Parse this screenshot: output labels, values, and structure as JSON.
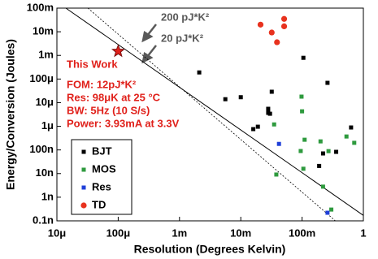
{
  "chart_data": {
    "type": "scatter",
    "x_label": "Resolution (Degrees Kelvin)",
    "y_label": "Energy/Conversion (Joules)",
    "xscale": "log",
    "yscale": "log",
    "xlim": [
      1e-05,
      1
    ],
    "ylim": [
      1e-10,
      0.1
    ],
    "xticks": [
      {
        "value": 1e-05,
        "label": "10μ"
      },
      {
        "value": 0.0001,
        "label": "100μ"
      },
      {
        "value": 0.001,
        "label": "1m"
      },
      {
        "value": 0.01,
        "label": "10m"
      },
      {
        "value": 0.1,
        "label": "100m"
      },
      1
    ],
    "yticks": [
      {
        "value": 1e-10,
        "label": "0.1n"
      },
      {
        "value": 1e-09,
        "label": "1n"
      },
      {
        "value": 1e-08,
        "label": "10n"
      },
      {
        "value": 1e-07,
        "label": "100n"
      },
      {
        "value": 1e-06,
        "label": "1μ"
      },
      {
        "value": 1e-05,
        "label": "10μ"
      },
      {
        "value": 0.0001,
        "label": "100μ"
      },
      {
        "value": 0.001,
        "label": "1m"
      },
      {
        "value": 0.01,
        "label": "10m"
      },
      {
        "value": 0.1,
        "label": "100m"
      }
    ],
    "legend": "lower left",
    "series": [
      {
        "name": "BJT",
        "color": "#000000",
        "marker": "square",
        "x": [
          0.0021,
          0.0056,
          0.01,
          0.016,
          0.019,
          0.028,
          0.028,
          0.032,
          0.03,
          0.105,
          0.26,
          0.22,
          0.36,
          0.19,
          0.63
        ],
        "values": [
          0.00019,
          1.4e-05,
          1.7e-05,
          7.6e-07,
          9.6e-07,
          3.7e-06,
          5.5e-06,
          2.9e-05,
          3.4e-06,
          0.00079,
          6.9e-05,
          7.1e-08,
          8.3e-08,
          2.1e-08,
          8.9e-07
        ]
      },
      {
        "name": "MOS",
        "color": "#2e9a3e",
        "marker": "square",
        "x": [
          0.035,
          0.098,
          0.1,
          0.11,
          0.095,
          0.105,
          0.038,
          0.2,
          0.22,
          0.3,
          0.27,
          0.53,
          0.71
        ],
        "values": [
          1.2e-06,
          1.8e-05,
          4.3e-06,
          2.7e-07,
          9e-08,
          1.6e-08,
          9.1e-09,
          2.3e-07,
          2.8e-09,
          3e-10,
          8.9e-08,
          3.7e-07,
          2e-07
        ]
      },
      {
        "name": "Res",
        "color": "#1f3fd8",
        "marker": "square",
        "x": [
          0.042,
          0.26
        ],
        "values": [
          1.8e-07,
          2.2e-10
        ]
      },
      {
        "name": "TD",
        "color": "#e8321e",
        "marker": "circle",
        "x": [
          0.021,
          0.032,
          0.039,
          0.051,
          0.051
        ],
        "values": [
          0.02,
          0.0093,
          0.0036,
          0.035,
          0.017
        ]
      }
    ],
    "this_work": {
      "label": "This Work",
      "x": 0.0001,
      "y": 0.0015,
      "color": "#e0201a"
    },
    "fom_lines": [
      {
        "name": "200 pJ*K²",
        "style": "solid",
        "x": [
          1.4e-05,
          1
        ],
        "values": [
          0.1,
          1.7e-10
        ]
      },
      {
        "name": "20 pJ*K²",
        "style": "dashed",
        "x": [
          3.2e-05,
          0.35
        ],
        "values": [
          0.1,
          1e-10
        ]
      }
    ],
    "annotations": [
      "FOM:  12pJ*K²",
      "Res: 98μK at 25 °C",
      "BW: 5Hz (10 S/s)",
      "Power: 3.93mA at 3.3V"
    ]
  }
}
